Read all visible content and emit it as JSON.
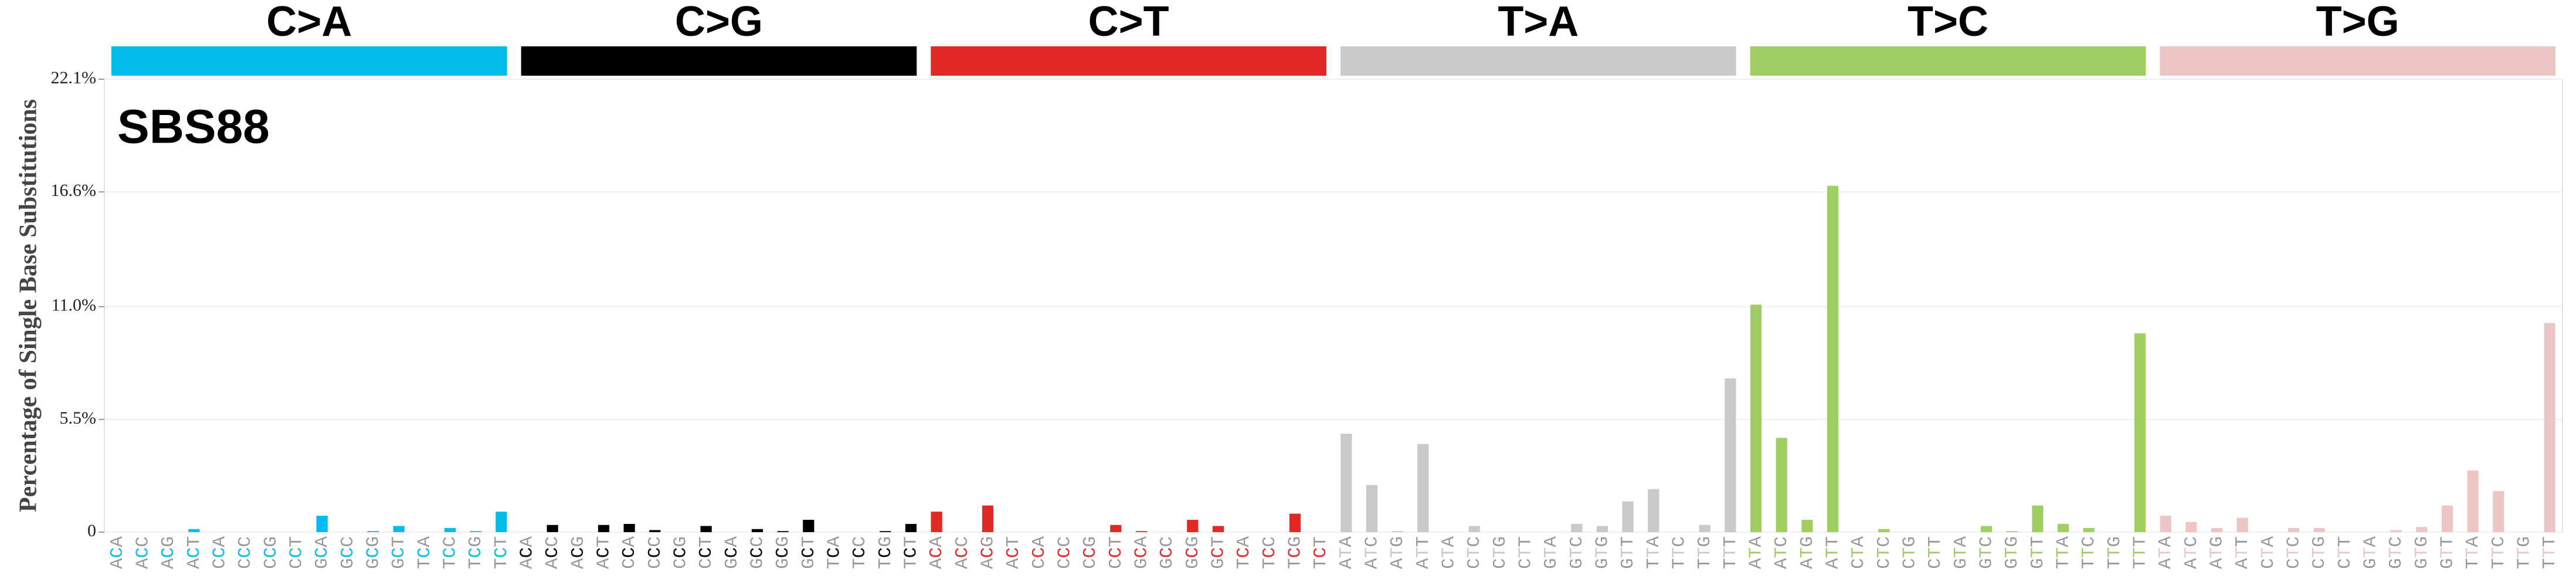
{
  "chart_data": {
    "type": "bar",
    "title": "SBS88",
    "y_label": "Percentage of Single Base Substitutions",
    "ylim": [
      0,
      22.1
    ],
    "yticks": [
      0,
      {
        "value": 5.5,
        "label": "5.5%"
      },
      {
        "value": 11.0,
        "label": "11.0%"
      },
      {
        "value": 16.6,
        "label": "16.6%"
      },
      {
        "value": 22.1,
        "label": "22.1%"
      }
    ],
    "grid": true,
    "groups": [
      {
        "name": "C>A",
        "color": "#03bcee",
        "categories": [
          "ACA",
          "ACC",
          "ACG",
          "ACT",
          "CCA",
          "CCC",
          "CCG",
          "CCT",
          "GCA",
          "GCC",
          "GCG",
          "GCT",
          "TCA",
          "TCC",
          "TCG",
          "TCT"
        ],
        "values": [
          0,
          0,
          0,
          0.15,
          0,
          0,
          0,
          0,
          0.8,
          0,
          0.05,
          0.3,
          0,
          0.2,
          0.05,
          1.0
        ]
      },
      {
        "name": "C>G",
        "color": "#010101",
        "categories": [
          "ACA",
          "ACC",
          "ACG",
          "ACT",
          "CCA",
          "CCC",
          "CCG",
          "CCT",
          "GCA",
          "GCC",
          "GCG",
          "GCT",
          "TCA",
          "TCC",
          "TCG",
          "TCT"
        ],
        "values": [
          0,
          0.35,
          0,
          0.35,
          0.4,
          0.1,
          0,
          0.3,
          0,
          0.15,
          0.05,
          0.6,
          0,
          0,
          0.05,
          0.4
        ]
      },
      {
        "name": "C>T",
        "color": "#e32926",
        "categories": [
          "ACA",
          "ACC",
          "ACG",
          "ACT",
          "CCA",
          "CCC",
          "CCG",
          "CCT",
          "GCA",
          "GCC",
          "GCG",
          "GCT",
          "TCA",
          "TCC",
          "TCG",
          "TCT"
        ],
        "values": [
          1.0,
          0,
          1.3,
          0,
          0,
          0,
          0,
          0.35,
          0.05,
          0,
          0.6,
          0.3,
          0,
          0,
          0.9,
          0
        ]
      },
      {
        "name": "T>A",
        "color": "#cac9c9",
        "categories": [
          "ATA",
          "ATC",
          "ATG",
          "ATT",
          "CTA",
          "CTC",
          "CTG",
          "CTT",
          "GTA",
          "GTC",
          "GTG",
          "GTT",
          "TTA",
          "TTC",
          "TTG",
          "TTT"
        ],
        "values": [
          4.8,
          2.3,
          0.05,
          4.3,
          0,
          0.3,
          0,
          0,
          0,
          0.4,
          0.3,
          1.5,
          2.1,
          0,
          0.35,
          7.5
        ]
      },
      {
        "name": "T>C",
        "color": "#a1ce63",
        "categories": [
          "ATA",
          "ATC",
          "ATG",
          "ATT",
          "CTA",
          "CTC",
          "CTG",
          "CTT",
          "GTA",
          "GTC",
          "GTG",
          "GTT",
          "TTA",
          "TTC",
          "TTG",
          "TTT"
        ],
        "values": [
          11.1,
          4.6,
          0.6,
          16.9,
          0,
          0.15,
          0,
          0,
          0,
          0.3,
          0.05,
          1.3,
          0.4,
          0.2,
          0,
          9.7
        ]
      },
      {
        "name": "T>G",
        "color": "#ebc6c4",
        "categories": [
          "ATA",
          "ATC",
          "ATG",
          "ATT",
          "CTA",
          "CTC",
          "CTG",
          "CTT",
          "GTA",
          "GTC",
          "GTG",
          "GTT",
          "TTA",
          "TTC",
          "TTG",
          "TTT"
        ],
        "values": [
          0.8,
          0.5,
          0.2,
          0.7,
          0,
          0.2,
          0.2,
          0,
          0,
          0.1,
          0.25,
          1.3,
          3.0,
          2.0,
          0,
          10.2
        ]
      }
    ]
  }
}
